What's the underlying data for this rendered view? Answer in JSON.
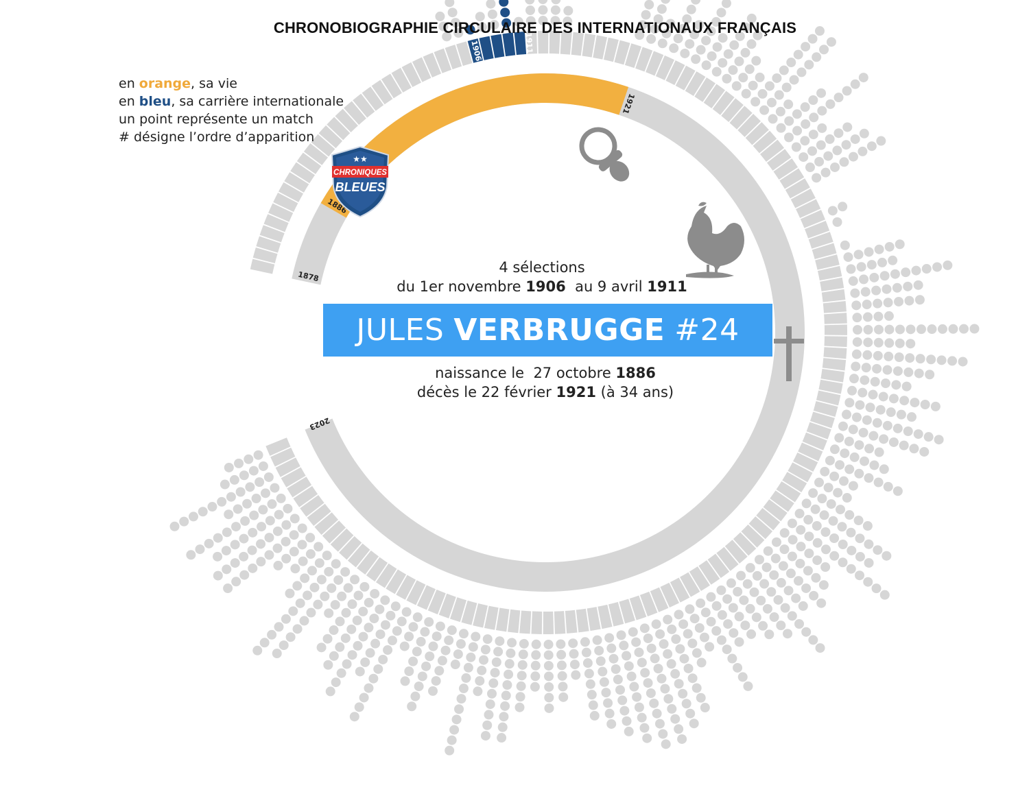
{
  "title": "CHRONOBIOGRAPHIE CIRCULAIRE DES INTERNATIONAUX FRANÇAIS",
  "legend": {
    "line1_pre": "en ",
    "line1_key": "orange",
    "line1_post": ", sa vie",
    "line2_pre": "en ",
    "line2_key": "bleu",
    "line2_post": ", sa carrière internationale",
    "line3": "un point représente un match",
    "line4": "# désigne l’ordre d’apparition"
  },
  "badge": {
    "top": "CHRONIQUES",
    "bottom": "BLEUES",
    "stars": "★★"
  },
  "player": {
    "first_name": "JULES",
    "last_name": "VERBRUGGE",
    "number": "#24"
  },
  "selections": {
    "count_text": "4 sélections",
    "from_pre": "du 1er novembre ",
    "from_year": "1906",
    "to_pre": "  au 9 avril ",
    "to_year": "1911"
  },
  "bio": {
    "birth_pre": "naissance le  27 octobre ",
    "birth_year": "1886",
    "death_pre": "décès le 22 février ",
    "death_year": "1921",
    "death_post": " (à 34 ans)"
  },
  "colors": {
    "life": "#f2b040",
    "career": "#1f4f86",
    "grey": "#d6d6d6",
    "banner": "#3ea0f2",
    "icon": "#8c8c8c"
  },
  "icons": [
    "pacifier-icon",
    "rooster-icon",
    "cross-icon",
    "shield-logo"
  ],
  "chart_data": {
    "type": "radial-timeline",
    "timeline_start_year": 1878,
    "timeline_end_year": 2023,
    "year_labels": [
      "1878",
      "1886",
      "1921",
      "1906",
      "1911",
      "2023"
    ],
    "life_span": [
      1886,
      1921
    ],
    "career_span": [
      1906,
      1911
    ],
    "matches_total": 4,
    "match_dots_highlighted": 4
  }
}
